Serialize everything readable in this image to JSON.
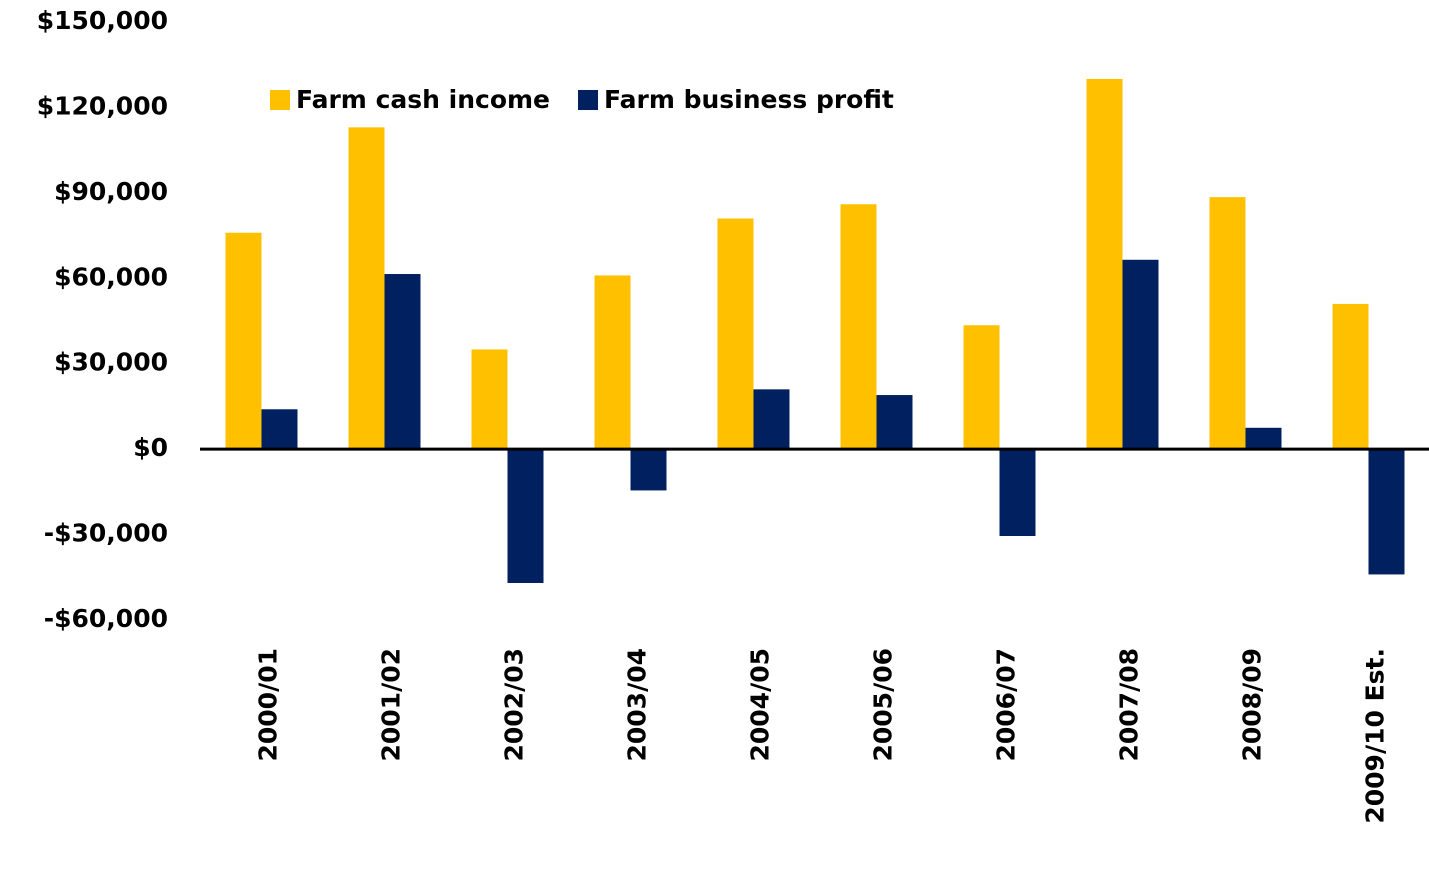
{
  "chart_data": {
    "type": "bar",
    "categories": [
      "2000/01",
      "2001/02",
      "2002/03",
      "2003/04",
      "2004/05",
      "2005/06",
      "2006/07",
      "2007/08",
      "2008/09",
      "2009/10 Est."
    ],
    "series": [
      {
        "name": "Farm cash income",
        "color": "#ffc000",
        "values": [
          76000,
          113000,
          35000,
          61000,
          81000,
          86000,
          43500,
          130000,
          88500,
          51000
        ]
      },
      {
        "name": "Farm business profit",
        "color": "#002060",
        "values": [
          14000,
          61500,
          -47000,
          -14500,
          21000,
          19000,
          -30500,
          66500,
          7500,
          -44000
        ]
      }
    ],
    "ylim": [
      -60000,
      150000
    ],
    "yticks": [
      {
        "value": -60000,
        "label": "-$60,000"
      },
      {
        "value": -30000,
        "label": "-$30,000"
      },
      {
        "value": 0,
        "label": "$0"
      },
      {
        "value": 30000,
        "label": "$30,000"
      },
      {
        "value": 60000,
        "label": "$60,000"
      },
      {
        "value": 90000,
        "label": "$90,000"
      },
      {
        "value": 120000,
        "label": "$120,000"
      },
      {
        "value": 150000,
        "label": "$150,000"
      }
    ],
    "grid": false,
    "legend": "top"
  }
}
